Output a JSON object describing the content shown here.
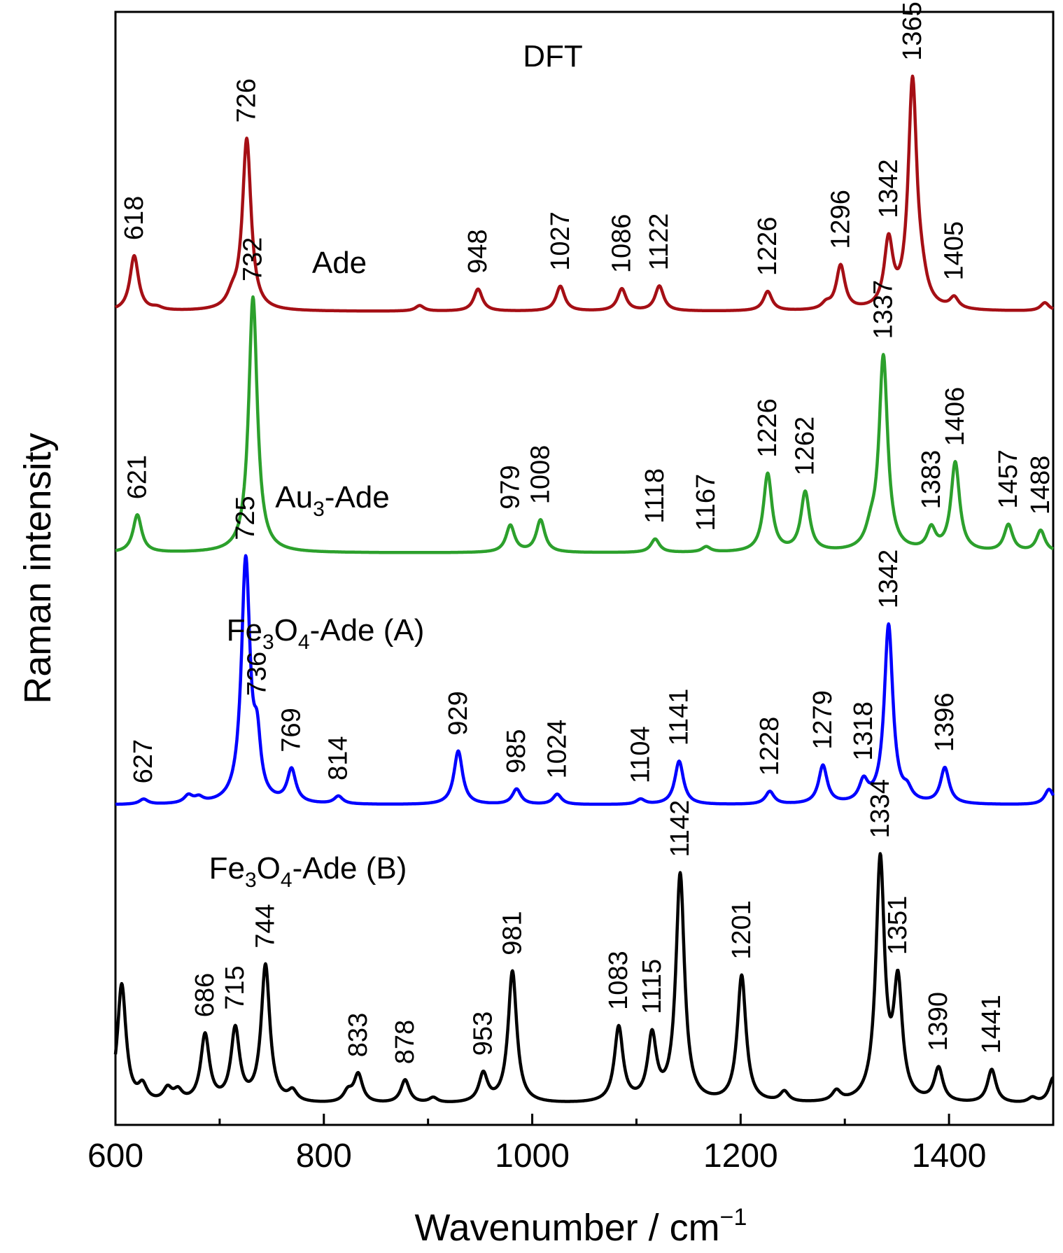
{
  "chart_data": {
    "type": "line",
    "title": "DFT",
    "xlabel": "Wavenumber / cm",
    "xlabel_sup": "−1",
    "ylabel": "Raman intensity",
    "xlim": [
      600,
      1500
    ],
    "x_ticks": [
      600,
      800,
      1000,
      1200,
      1400
    ],
    "x_tick_labels": [
      "600",
      "800",
      "1000",
      "1200",
      "1400"
    ],
    "y_ticks": false,
    "grid": false,
    "series": [
      {
        "name": "Ade",
        "label_main": "Ade",
        "label_sub": "",
        "label_rest": "",
        "color": "#a50f15",
        "baseline": 0.0,
        "peaks": [
          {
            "x": 618,
            "h": 0.2,
            "w": 5,
            "label": "618"
          },
          {
            "x": 640,
            "h": 0.01,
            "w": 6,
            "label": ""
          },
          {
            "x": 712,
            "h": 0.04,
            "w": 6,
            "label": ""
          },
          {
            "x": 726,
            "h": 0.62,
            "w": 5,
            "label": "726"
          },
          {
            "x": 892,
            "h": 0.02,
            "w": 5,
            "label": ""
          },
          {
            "x": 948,
            "h": 0.08,
            "w": 5,
            "label": "948"
          },
          {
            "x": 1027,
            "h": 0.09,
            "w": 5,
            "label": "1027"
          },
          {
            "x": 1086,
            "h": 0.08,
            "w": 5,
            "label": "1086"
          },
          {
            "x": 1122,
            "h": 0.09,
            "w": 5,
            "label": "1122"
          },
          {
            "x": 1226,
            "h": 0.07,
            "w": 5,
            "label": "1226"
          },
          {
            "x": 1282,
            "h": 0.02,
            "w": 5,
            "label": ""
          },
          {
            "x": 1296,
            "h": 0.16,
            "w": 5,
            "label": "1296"
          },
          {
            "x": 1342,
            "h": 0.24,
            "w": 5,
            "label": "1342"
          },
          {
            "x": 1365,
            "h": 0.82,
            "w": 5,
            "label": "1365"
          },
          {
            "x": 1374,
            "h": 0.06,
            "w": 6,
            "label": ""
          },
          {
            "x": 1405,
            "h": 0.04,
            "w": 5,
            "label": "1405"
          },
          {
            "x": 1492,
            "h": 0.03,
            "w": 5,
            "label": ""
          }
        ]
      },
      {
        "name": "Au3-Ade",
        "label_main": "Au",
        "label_sub": "3",
        "label_rest": "-Ade",
        "color": "#2ca02c",
        "baseline": 0.0,
        "peaks": [
          {
            "x": 621,
            "h": 0.14,
            "w": 5,
            "label": "621"
          },
          {
            "x": 732,
            "h": 0.95,
            "w": 5,
            "label": "732"
          },
          {
            "x": 979,
            "h": 0.1,
            "w": 5,
            "label": "979"
          },
          {
            "x": 1008,
            "h": 0.12,
            "w": 5,
            "label": "1008"
          },
          {
            "x": 1118,
            "h": 0.05,
            "w": 5,
            "label": "1118"
          },
          {
            "x": 1167,
            "h": 0.02,
            "w": 5,
            "label": "1167"
          },
          {
            "x": 1226,
            "h": 0.29,
            "w": 5,
            "label": "1226"
          },
          {
            "x": 1262,
            "h": 0.22,
            "w": 5,
            "label": "1262"
          },
          {
            "x": 1325,
            "h": 0.06,
            "w": 6,
            "label": ""
          },
          {
            "x": 1337,
            "h": 0.72,
            "w": 5,
            "label": "1337"
          },
          {
            "x": 1383,
            "h": 0.08,
            "w": 5,
            "label": "1383"
          },
          {
            "x": 1406,
            "h": 0.33,
            "w": 5,
            "label": "1406"
          },
          {
            "x": 1457,
            "h": 0.1,
            "w": 5,
            "label": "1457"
          },
          {
            "x": 1488,
            "h": 0.08,
            "w": 5,
            "label": "1488"
          }
        ]
      },
      {
        "name": "Fe3O4-Ade (A)",
        "label_main": "Fe",
        "label_sub": "3",
        "label_rest": "O|4|-Ade (A)",
        "color": "#0000ff",
        "baseline": 0.0,
        "peaks": [
          {
            "x": 627,
            "h": 0.02,
            "w": 5,
            "label": "627"
          },
          {
            "x": 670,
            "h": 0.03,
            "w": 5,
            "label": ""
          },
          {
            "x": 680,
            "h": 0.02,
            "w": 5,
            "label": ""
          },
          {
            "x": 725,
            "h": 0.95,
            "w": 5,
            "label": "725"
          },
          {
            "x": 736,
            "h": 0.2,
            "w": 4,
            "label": "736"
          },
          {
            "x": 769,
            "h": 0.13,
            "w": 5,
            "label": "769"
          },
          {
            "x": 814,
            "h": 0.03,
            "w": 5,
            "label": "814"
          },
          {
            "x": 929,
            "h": 0.21,
            "w": 5,
            "label": "929"
          },
          {
            "x": 985,
            "h": 0.06,
            "w": 5,
            "label": "985"
          },
          {
            "x": 1024,
            "h": 0.04,
            "w": 5,
            "label": "1024"
          },
          {
            "x": 1104,
            "h": 0.02,
            "w": 5,
            "label": "1104"
          },
          {
            "x": 1141,
            "h": 0.17,
            "w": 5,
            "label": "1141"
          },
          {
            "x": 1228,
            "h": 0.05,
            "w": 5,
            "label": "1228"
          },
          {
            "x": 1279,
            "h": 0.15,
            "w": 5,
            "label": "1279"
          },
          {
            "x": 1318,
            "h": 0.08,
            "w": 5,
            "label": "1318"
          },
          {
            "x": 1342,
            "h": 0.7,
            "w": 5,
            "label": "1342"
          },
          {
            "x": 1360,
            "h": 0.04,
            "w": 5,
            "label": ""
          },
          {
            "x": 1396,
            "h": 0.14,
            "w": 5,
            "label": "1396"
          },
          {
            "x": 1496,
            "h": 0.06,
            "w": 5,
            "label": ""
          }
        ]
      },
      {
        "name": "Fe3O4-Ade (B)",
        "label_main": "Fe",
        "label_sub": "3",
        "label_rest": "O|4|-Ade (B)",
        "color": "#000000",
        "baseline": 0.0,
        "peaks": [
          {
            "x": 606,
            "h": 0.46,
            "w": 5,
            "label": ""
          },
          {
            "x": 626,
            "h": 0.06,
            "w": 5,
            "label": ""
          },
          {
            "x": 650,
            "h": 0.05,
            "w": 5,
            "label": ""
          },
          {
            "x": 660,
            "h": 0.04,
            "w": 5,
            "label": ""
          },
          {
            "x": 686,
            "h": 0.26,
            "w": 5,
            "label": "686"
          },
          {
            "x": 715,
            "h": 0.28,
            "w": 5,
            "label": "715"
          },
          {
            "x": 744,
            "h": 0.53,
            "w": 5,
            "label": "744"
          },
          {
            "x": 770,
            "h": 0.04,
            "w": 5,
            "label": ""
          },
          {
            "x": 823,
            "h": 0.04,
            "w": 5,
            "label": ""
          },
          {
            "x": 833,
            "h": 0.11,
            "w": 5,
            "label": "833"
          },
          {
            "x": 878,
            "h": 0.09,
            "w": 5,
            "label": "878"
          },
          {
            "x": 905,
            "h": 0.02,
            "w": 5,
            "label": ""
          },
          {
            "x": 953,
            "h": 0.11,
            "w": 5,
            "label": "953"
          },
          {
            "x": 981,
            "h": 0.51,
            "w": 5,
            "label": "981"
          },
          {
            "x": 1083,
            "h": 0.29,
            "w": 5,
            "label": "1083"
          },
          {
            "x": 1115,
            "h": 0.25,
            "w": 5,
            "label": "1115"
          },
          {
            "x": 1142,
            "h": 0.88,
            "w": 5,
            "label": "1142"
          },
          {
            "x": 1201,
            "h": 0.49,
            "w": 5,
            "label": "1201"
          },
          {
            "x": 1242,
            "h": 0.04,
            "w": 5,
            "label": ""
          },
          {
            "x": 1292,
            "h": 0.04,
            "w": 5,
            "label": ""
          },
          {
            "x": 1334,
            "h": 0.93,
            "w": 5,
            "label": "1334"
          },
          {
            "x": 1351,
            "h": 0.44,
            "w": 5,
            "label": "1351"
          },
          {
            "x": 1390,
            "h": 0.13,
            "w": 5,
            "label": "1390"
          },
          {
            "x": 1441,
            "h": 0.13,
            "w": 5,
            "label": "1441"
          },
          {
            "x": 1480,
            "h": 0.02,
            "w": 5,
            "label": ""
          },
          {
            "x": 1500,
            "h": 0.1,
            "w": 5,
            "label": ""
          }
        ]
      }
    ]
  }
}
